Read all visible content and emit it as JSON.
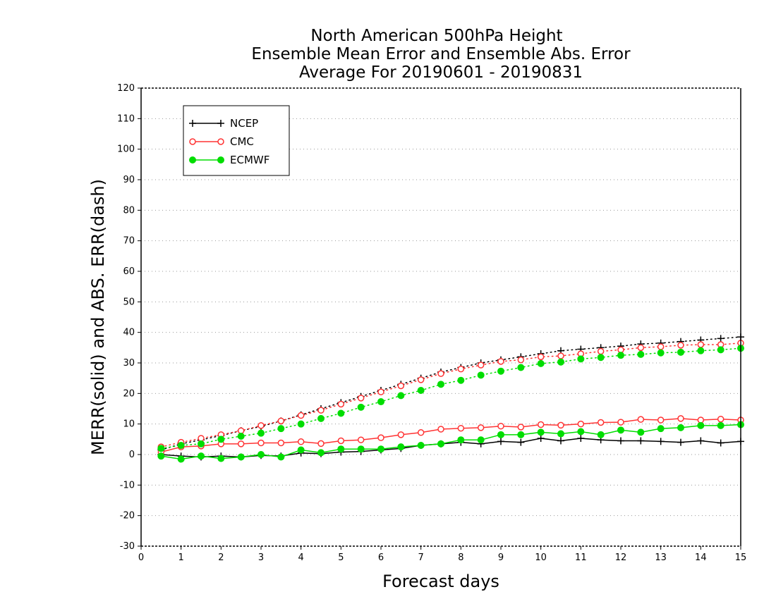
{
  "chart_data": {
    "type": "line",
    "title": [
      "North American 500hPa Height",
      "Ensemble Mean Error and Ensemble Abs. Error",
      "Average For 20190601 - 20190831"
    ],
    "xlabel": "Forecast days",
    "ylabel": "MERR(solid) and ABS. ERR(dash)",
    "xlim": [
      0,
      15
    ],
    "ylim": [
      -30,
      120
    ],
    "xticks": [
      "0",
      "1",
      "2",
      "3",
      "4",
      "5",
      "6",
      "7",
      "8",
      "9",
      "10",
      "11",
      "12",
      "13",
      "14",
      "15"
    ],
    "yticks": [
      "-30",
      "-20",
      "-10",
      "0",
      "10",
      "20",
      "30",
      "40",
      "50",
      "60",
      "70",
      "80",
      "90",
      "100",
      "110",
      "120"
    ],
    "grid": true,
    "legend_position": "top-left",
    "x": [
      0.5,
      1,
      1.5,
      2,
      2.5,
      3,
      3.5,
      4,
      4.5,
      5,
      5.5,
      6,
      6.5,
      7,
      7.5,
      8,
      8.5,
      9,
      9.5,
      10,
      10.5,
      11,
      11.5,
      12,
      12.5,
      13,
      13.5,
      14,
      14.5,
      15
    ],
    "series": [
      {
        "name": "NCEP",
        "color": "#000000",
        "marker": "plus",
        "merr": [
          0,
          -0.5,
          -0.8,
          -0.5,
          -0.8,
          -0.3,
          -0.5,
          0.5,
          0.3,
          0.8,
          1.0,
          1.5,
          2.0,
          3.0,
          3.5,
          4.0,
          3.5,
          4.3,
          4.0,
          5.3,
          4.5,
          5.3,
          4.8,
          4.5,
          4.5,
          4.3,
          4.0,
          4.5,
          3.8,
          4.3
        ],
        "abs_err": [
          1.5,
          3.5,
          4.8,
          6.2,
          7.8,
          9.2,
          11,
          13,
          15,
          17,
          19,
          21,
          23,
          25,
          27,
          28.5,
          30,
          31,
          32,
          33,
          34,
          34.5,
          35,
          35.5,
          36.2,
          36.5,
          37,
          37.5,
          38,
          38.5
        ]
      },
      {
        "name": "CMC",
        "color": "#ff3333",
        "marker": "open-circle",
        "merr": [
          0.8,
          2.5,
          2.8,
          3.5,
          3.5,
          3.8,
          3.8,
          4.2,
          3.6,
          4.5,
          4.8,
          5.5,
          6.5,
          7.2,
          8.3,
          8.6,
          8.8,
          9.3,
          9.0,
          9.8,
          9.6,
          10.0,
          10.5,
          10.6,
          11.5,
          11.3,
          11.8,
          11.3,
          11.6,
          11.3
        ],
        "abs_err": [
          2.5,
          4.0,
          5.3,
          6.5,
          7.8,
          9.5,
          11.0,
          12.8,
          14.5,
          16.5,
          18.5,
          20.5,
          22.5,
          24.5,
          26.5,
          28.0,
          29.3,
          30.5,
          31.0,
          32.0,
          32.3,
          33.0,
          33.8,
          34.3,
          35.0,
          35.3,
          35.8,
          36.0,
          36.0,
          36.5
        ]
      },
      {
        "name": "ECMWF",
        "color": "#00dd00",
        "marker": "filled-circle",
        "merr": [
          -0.5,
          -1.5,
          -0.5,
          -1.3,
          -0.8,
          0,
          -0.8,
          1.5,
          0.6,
          1.8,
          1.8,
          1.8,
          2.5,
          3.0,
          3.5,
          4.8,
          4.8,
          6.5,
          6.5,
          7.3,
          6.8,
          7.5,
          6.5,
          8.0,
          7.3,
          8.5,
          8.8,
          9.5,
          9.5,
          9.8
        ],
        "abs_err": [
          2.0,
          3.0,
          3.5,
          5.0,
          6.0,
          7.0,
          8.5,
          10.0,
          11.8,
          13.5,
          15.5,
          17.3,
          19.3,
          21.0,
          23.0,
          24.3,
          26.0,
          27.3,
          28.5,
          29.8,
          30.3,
          31.3,
          31.8,
          32.5,
          32.8,
          33.3,
          33.5,
          34.0,
          34.3,
          34.8
        ]
      }
    ]
  }
}
